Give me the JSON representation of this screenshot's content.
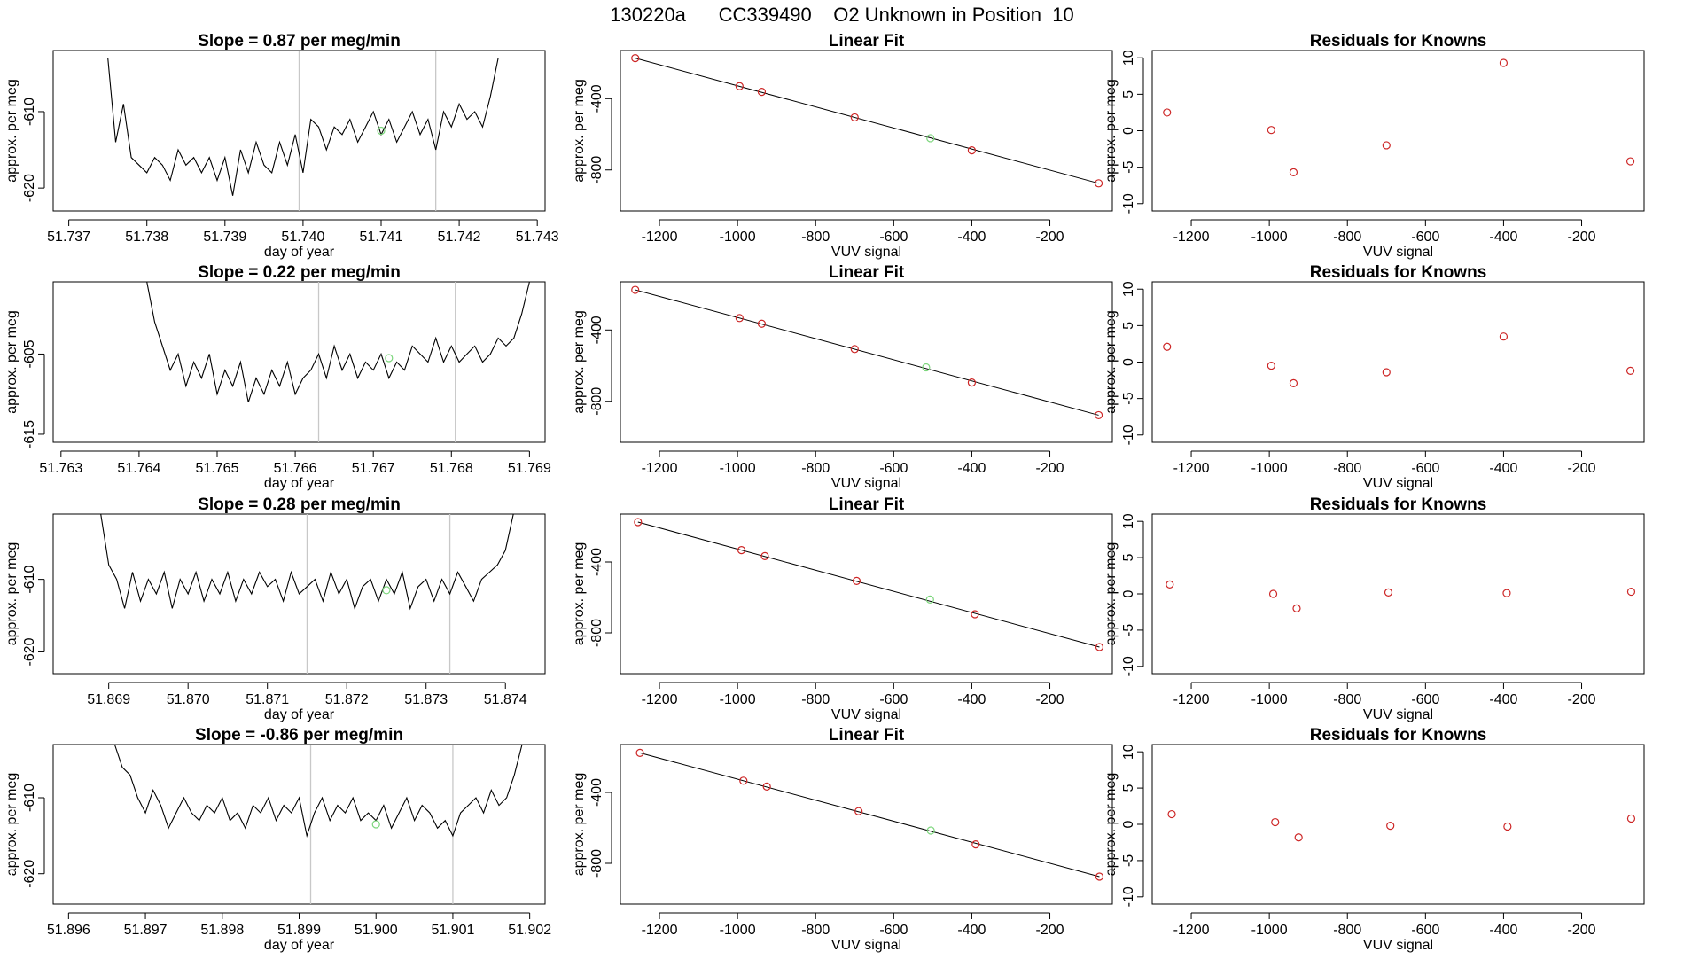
{
  "title": "130220a      CC339490    O2 Unknown in Position  10",
  "colors": {
    "known": "#cd2626",
    "unknown": "#7cd67c",
    "trace": "#000000",
    "marker": "#c8c8c8"
  },
  "chart_data": [
    {
      "type": "line",
      "row": 1,
      "title": "Slope =  0.87  per meg/min",
      "xlabel": "day of year",
      "ylabel": "approx. per meg",
      "xlim": [
        51.7368,
        51.7431
      ],
      "ylim": [
        -623,
        -602
      ],
      "xticks": [
        51.737,
        51.738,
        51.739,
        51.74,
        51.741,
        51.742,
        51.743
      ],
      "xtick_labels": [
        "51.737",
        "51.738",
        "51.739",
        "51.740",
        "51.741",
        "51.742",
        "51.743"
      ],
      "yticks": [
        -610,
        -620
      ],
      "ytick_labels": [
        "-610",
        "-620"
      ],
      "markers": [
        51.73995,
        51.7417
      ],
      "unknown_point": [
        51.741,
        -612.5
      ],
      "x": [
        51.7375,
        51.7376,
        51.7377,
        51.7378,
        51.7379,
        51.738,
        51.7381,
        51.7382,
        51.7383,
        51.7384,
        51.7385,
        51.7386,
        51.7387,
        51.7388,
        51.7389,
        51.739,
        51.7391,
        51.7392,
        51.7393,
        51.7394,
        51.7395,
        51.7396,
        51.7397,
        51.7398,
        51.7399,
        51.74,
        51.7401,
        51.7402,
        51.7403,
        51.7404,
        51.7405,
        51.7406,
        51.7407,
        51.7408,
        51.7409,
        51.741,
        51.7411,
        51.7412,
        51.7413,
        51.7414,
        51.7415,
        51.7416,
        51.7417,
        51.7418,
        51.7419,
        51.742,
        51.7421,
        51.7422,
        51.7423,
        51.7424,
        51.7425
      ],
      "y": [
        -603,
        -614,
        -609,
        -616,
        -617,
        -618,
        -616,
        -617,
        -619,
        -615,
        -617,
        -616,
        -618,
        -616,
        -619,
        -616,
        -621,
        -615,
        -618,
        -614,
        -617,
        -618,
        -614,
        -617,
        -613,
        -618,
        -611,
        -612,
        -615,
        -612,
        -613,
        -611,
        -614,
        -612,
        -610,
        -613,
        -611,
        -614,
        -612,
        -610,
        -613,
        -611,
        -615,
        -610,
        -612,
        -609,
        -611,
        -610,
        -612,
        -608,
        -603
      ]
    },
    {
      "type": "line",
      "row": 2,
      "title": "Slope =  0.22  per meg/min",
      "xlabel": "day of year",
      "ylabel": "approx. per meg",
      "xlim": [
        51.7629,
        51.7692
      ],
      "ylim": [
        -616,
        -596
      ],
      "xticks": [
        51.763,
        51.764,
        51.765,
        51.766,
        51.767,
        51.768,
        51.769
      ],
      "xtick_labels": [
        "51.763",
        "51.764",
        "51.765",
        "51.766",
        "51.767",
        "51.768",
        "51.769"
      ],
      "yticks": [
        -605,
        -615
      ],
      "ytick_labels": [
        "-605",
        "-615"
      ],
      "markers": [
        51.7663,
        51.76805
      ],
      "unknown_point": [
        51.7672,
        -605.5
      ],
      "x": [
        51.7641,
        51.7642,
        51.7643,
        51.7644,
        51.7645,
        51.7646,
        51.7647,
        51.7648,
        51.7649,
        51.765,
        51.7651,
        51.7652,
        51.7653,
        51.7654,
        51.7655,
        51.7656,
        51.7657,
        51.7658,
        51.7659,
        51.766,
        51.7661,
        51.7662,
        51.7663,
        51.7664,
        51.7665,
        51.7666,
        51.7667,
        51.7668,
        51.7669,
        51.767,
        51.7671,
        51.7672,
        51.7673,
        51.7674,
        51.7675,
        51.7676,
        51.7677,
        51.7678,
        51.7679,
        51.768,
        51.7681,
        51.7682,
        51.7683,
        51.7684,
        51.7685,
        51.7686,
        51.7687,
        51.7688,
        51.7689,
        51.769
      ],
      "y": [
        -596,
        -601,
        -604,
        -607,
        -605,
        -609,
        -606,
        -608,
        -605,
        -610,
        -607,
        -609,
        -606,
        -611,
        -608,
        -610,
        -607,
        -609,
        -606,
        -610,
        -608,
        -607,
        -605,
        -608,
        -604,
        -607,
        -605,
        -608,
        -606,
        -607,
        -605,
        -608,
        -606,
        -607,
        -604,
        -605,
        -606,
        -603,
        -606,
        -604,
        -606,
        -605,
        -604,
        -606,
        -605,
        -603,
        -604,
        -603,
        -600,
        -596
      ]
    },
    {
      "type": "line",
      "row": 3,
      "title": "Slope =  0.28  per meg/min",
      "xlabel": "day of year",
      "ylabel": "approx. per meg",
      "xlim": [
        51.8683,
        51.8745
      ],
      "ylim": [
        -623,
        -601
      ],
      "xticks": [
        51.869,
        51.87,
        51.871,
        51.872,
        51.873,
        51.874
      ],
      "xtick_labels": [
        "51.869",
        "51.870",
        "51.871",
        "51.872",
        "51.873",
        "51.874"
      ],
      "yticks": [
        -610,
        -620
      ],
      "ytick_labels": [
        "-610",
        "-620"
      ],
      "markers": [
        51.8715,
        51.8733
      ],
      "unknown_point": [
        51.8725,
        -611.5
      ],
      "x": [
        51.8689,
        51.869,
        51.8691,
        51.8692,
        51.8693,
        51.8694,
        51.8695,
        51.8696,
        51.8697,
        51.8698,
        51.8699,
        51.87,
        51.8701,
        51.8702,
        51.8703,
        51.8704,
        51.8705,
        51.8706,
        51.8707,
        51.8708,
        51.8709,
        51.871,
        51.8711,
        51.8712,
        51.8713,
        51.8714,
        51.8715,
        51.8716,
        51.8717,
        51.8718,
        51.8719,
        51.872,
        51.8721,
        51.8722,
        51.8723,
        51.8724,
        51.8725,
        51.8726,
        51.8727,
        51.8728,
        51.8729,
        51.873,
        51.8731,
        51.8732,
        51.8733,
        51.8734,
        51.8735,
        51.8736,
        51.8737,
        51.8738,
        51.8739,
        51.874,
        51.8741
      ],
      "y": [
        -601,
        -608,
        -610,
        -614,
        -609,
        -613,
        -610,
        -612,
        -609,
        -614,
        -610,
        -612,
        -609,
        -613,
        -610,
        -612,
        -609,
        -613,
        -610,
        -612,
        -609,
        -611,
        -610,
        -613,
        -609,
        -612,
        -611,
        -610,
        -613,
        -609,
        -612,
        -610,
        -614,
        -611,
        -610,
        -613,
        -610,
        -612,
        -609,
        -614,
        -611,
        -610,
        -613,
        -610,
        -612,
        -609,
        -611,
        -613,
        -610,
        -609,
        -608,
        -606,
        -601
      ]
    },
    {
      "type": "line",
      "row": 4,
      "title": "Slope =  -0.86  per meg/min",
      "xlabel": "day of year",
      "ylabel": "approx. per meg",
      "xlim": [
        51.8958,
        51.9022
      ],
      "ylim": [
        -624,
        -603
      ],
      "xticks": [
        51.896,
        51.897,
        51.898,
        51.899,
        51.9,
        51.901,
        51.902
      ],
      "xtick_labels": [
        "51.896",
        "51.897",
        "51.898",
        "51.899",
        "51.900",
        "51.901",
        "51.902"
      ],
      "yticks": [
        -610,
        -620
      ],
      "ytick_labels": [
        "-610",
        "-620"
      ],
      "markers": [
        51.89915,
        51.901
      ],
      "unknown_point": [
        51.9,
        -613.5
      ],
      "x": [
        51.8966,
        51.8967,
        51.8968,
        51.8969,
        51.897,
        51.8971,
        51.8972,
        51.8973,
        51.8974,
        51.8975,
        51.8976,
        51.8977,
        51.8978,
        51.8979,
        51.898,
        51.8981,
        51.8982,
        51.8983,
        51.8984,
        51.8985,
        51.8986,
        51.8987,
        51.8988,
        51.8989,
        51.899,
        51.8991,
        51.8992,
        51.8993,
        51.8994,
        51.8995,
        51.8996,
        51.8997,
        51.8998,
        51.8999,
        51.9,
        51.9001,
        51.9002,
        51.9003,
        51.9004,
        51.9005,
        51.9006,
        51.9007,
        51.9008,
        51.9009,
        51.901,
        51.9011,
        51.9012,
        51.9013,
        51.9014,
        51.9015,
        51.9016,
        51.9017,
        51.9018,
        51.9019
      ],
      "y": [
        -603,
        -606,
        -607,
        -610,
        -612,
        -609,
        -611,
        -614,
        -612,
        -610,
        -612,
        -613,
        -611,
        -612,
        -610,
        -613,
        -612,
        -614,
        -611,
        -612,
        -610,
        -613,
        -611,
        -612,
        -610,
        -615,
        -612,
        -610,
        -613,
        -611,
        -612,
        -610,
        -613,
        -612,
        -613,
        -611,
        -614,
        -612,
        -610,
        -613,
        -611,
        -612,
        -614,
        -613,
        -615,
        -612,
        -611,
        -610,
        -612,
        -609,
        -611,
        -610,
        -607,
        -603
      ]
    },
    {
      "type": "scatter",
      "row": 1,
      "title": "Linear Fit",
      "xlabel": "VUV signal",
      "ylabel": "approx. per meg",
      "xlim": [
        -1300,
        -40
      ],
      "ylim": [
        -1030,
        -130
      ],
      "xticks": [
        -1200,
        -1000,
        -800,
        -600,
        -400,
        -200
      ],
      "xtick_labels": [
        "-1200",
        "-1000",
        "-800",
        "-600",
        "-400",
        "-200"
      ],
      "yticks": [
        -400,
        -800
      ],
      "ytick_labels": [
        "-400",
        "-800"
      ],
      "known_x": [
        -1262,
        -995,
        -938,
        -700,
        -400,
        -75
      ],
      "known_y": [
        -173,
        -330,
        -362,
        -505,
        -690,
        -875
      ],
      "unknown_point": [
        -506,
        -622
      ],
      "fit_line": [
        [
          -1262,
          -173
        ],
        [
          -75,
          -875
        ]
      ]
    },
    {
      "type": "scatter",
      "row": 2,
      "title": "Linear Fit",
      "xlabel": "VUV signal",
      "ylabel": "approx. per meg",
      "xlim": [
        -1300,
        -40
      ],
      "ylim": [
        -1030,
        -130
      ],
      "xticks": [
        -1200,
        -1000,
        -800,
        -600,
        -400,
        -200
      ],
      "xtick_labels": [
        "-1200",
        "-1000",
        "-800",
        "-600",
        "-400",
        "-200"
      ],
      "yticks": [
        -400,
        -800
      ],
      "ytick_labels": [
        "-400",
        "-800"
      ],
      "known_x": [
        -1262,
        -995,
        -938,
        -700,
        -400,
        -75
      ],
      "known_y": [
        -175,
        -333,
        -365,
        -507,
        -695,
        -878
      ],
      "unknown_point": [
        -517,
        -610
      ],
      "fit_line": [
        [
          -1262,
          -175
        ],
        [
          -75,
          -878
        ]
      ]
    },
    {
      "type": "scatter",
      "row": 3,
      "title": "Linear Fit",
      "xlabel": "VUV signal",
      "ylabel": "approx. per meg",
      "xlim": [
        -1300,
        -40
      ],
      "ylim": [
        -1030,
        -130
      ],
      "xticks": [
        -1200,
        -1000,
        -800,
        -600,
        -400,
        -200
      ],
      "xtick_labels": [
        "-1200",
        "-1000",
        "-800",
        "-600",
        "-400",
        "-200"
      ],
      "yticks": [
        -400,
        -800
      ],
      "ytick_labels": [
        "-400",
        "-800"
      ],
      "known_x": [
        -1255,
        -990,
        -930,
        -695,
        -392,
        -73
      ],
      "known_y": [
        -175,
        -333,
        -367,
        -507,
        -695,
        -880
      ],
      "unknown_point": [
        -507,
        -612
      ],
      "fit_line": [
        [
          -1255,
          -175
        ],
        [
          -73,
          -880
        ]
      ]
    },
    {
      "type": "scatter",
      "row": 4,
      "title": "Linear Fit",
      "xlabel": "VUV signal",
      "ylabel": "approx. per meg",
      "xlim": [
        -1300,
        -40
      ],
      "ylim": [
        -1030,
        -130
      ],
      "xticks": [
        -1200,
        -1000,
        -800,
        -600,
        -400,
        -200
      ],
      "xtick_labels": [
        "-1200",
        "-1000",
        "-800",
        "-600",
        "-400",
        "-200"
      ],
      "yticks": [
        -400,
        -800
      ],
      "ytick_labels": [
        "-400",
        "-800"
      ],
      "known_x": [
        -1250,
        -985,
        -925,
        -690,
        -390,
        -73
      ],
      "known_y": [
        -177,
        -334,
        -367,
        -506,
        -693,
        -875
      ],
      "unknown_point": [
        -505,
        -615
      ],
      "fit_line": [
        [
          -1250,
          -177
        ],
        [
          -73,
          -875
        ]
      ]
    },
    {
      "type": "scatter",
      "row": 1,
      "title": "Residuals for Knowns",
      "xlabel": "VUV signal",
      "ylabel": "approx. per meg",
      "xlim": [
        -1300,
        -40
      ],
      "ylim": [
        -11,
        11
      ],
      "xticks": [
        -1200,
        -1000,
        -800,
        -600,
        -400,
        -200
      ],
      "xtick_labels": [
        "-1200",
        "-1000",
        "-800",
        "-600",
        "-400",
        "-200"
      ],
      "yticks": [
        10,
        5,
        0,
        -5,
        -10
      ],
      "ytick_labels": [
        "10",
        "5",
        "0",
        "-5",
        "-10"
      ],
      "x": [
        -1262,
        -995,
        -938,
        -700,
        -400,
        -75
      ],
      "y": [
        2.5,
        0.1,
        -5.7,
        -2.0,
        9.3,
        -4.2
      ]
    },
    {
      "type": "scatter",
      "row": 2,
      "title": "Residuals for Knowns",
      "xlabel": "VUV signal",
      "ylabel": "approx. per meg",
      "xlim": [
        -1300,
        -40
      ],
      "ylim": [
        -11,
        11
      ],
      "xticks": [
        -1200,
        -1000,
        -800,
        -600,
        -400,
        -200
      ],
      "xtick_labels": [
        "-1200",
        "-1000",
        "-800",
        "-600",
        "-400",
        "-200"
      ],
      "yticks": [
        10,
        5,
        0,
        -5,
        -10
      ],
      "ytick_labels": [
        "10",
        "5",
        "0",
        "-5",
        "-10"
      ],
      "x": [
        -1262,
        -995,
        -938,
        -700,
        -400,
        -75
      ],
      "y": [
        2.1,
        -0.5,
        -2.9,
        -1.4,
        3.5,
        -1.2
      ]
    },
    {
      "type": "scatter",
      "row": 3,
      "title": "Residuals for Knowns",
      "xlabel": "VUV signal",
      "ylabel": "approx. per meg",
      "xlim": [
        -1300,
        -40
      ],
      "ylim": [
        -11,
        11
      ],
      "xticks": [
        -1200,
        -1000,
        -800,
        -600,
        -400,
        -200
      ],
      "xtick_labels": [
        "-1200",
        "-1000",
        "-800",
        "-600",
        "-400",
        "-200"
      ],
      "yticks": [
        10,
        5,
        0,
        -5,
        -10
      ],
      "ytick_labels": [
        "10",
        "5",
        "0",
        "-5",
        "-10"
      ],
      "x": [
        -1255,
        -990,
        -930,
        -695,
        -392,
        -73
      ],
      "y": [
        1.3,
        0.0,
        -2.0,
        0.2,
        0.1,
        0.3
      ]
    },
    {
      "type": "scatter",
      "row": 4,
      "title": "Residuals for Knowns",
      "xlabel": "VUV signal",
      "ylabel": "approx. per meg",
      "xlim": [
        -1300,
        -40
      ],
      "ylim": [
        -11,
        11
      ],
      "xticks": [
        -1200,
        -1000,
        -800,
        -600,
        -400,
        -200
      ],
      "xtick_labels": [
        "-1200",
        "-1000",
        "-800",
        "-600",
        "-400",
        "-200"
      ],
      "yticks": [
        10,
        5,
        0,
        -5,
        -10
      ],
      "ytick_labels": [
        "10",
        "5",
        "0",
        "-5",
        "-10"
      ],
      "x": [
        -1250,
        -985,
        -925,
        -690,
        -390,
        -73
      ],
      "y": [
        1.4,
        0.3,
        -1.8,
        -0.2,
        -0.3,
        0.8
      ]
    }
  ]
}
